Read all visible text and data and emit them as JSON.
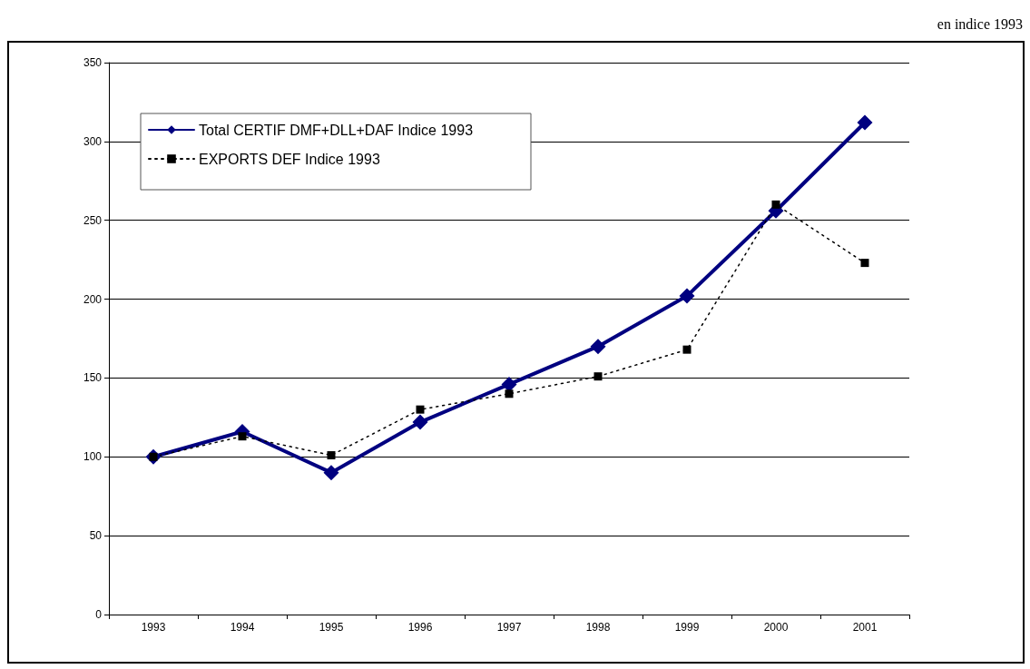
{
  "chart_data": {
    "type": "line",
    "subtitle": "en indice 1993",
    "categories": [
      "1993",
      "1994",
      "1995",
      "1996",
      "1997",
      "1998",
      "1999",
      "2000",
      "2001"
    ],
    "series": [
      {
        "name": "Total CERTIF DMF+DLL+DAF Indice 1993",
        "color": "#000080",
        "marker": "diamond",
        "line_style": "solid",
        "values": [
          100,
          116,
          90,
          122,
          146,
          170,
          202,
          256,
          312
        ]
      },
      {
        "name": "EXPORTS DEF Indice 1993",
        "color": "#000000",
        "marker": "square",
        "line_style": "dotted",
        "values": [
          100,
          113,
          101,
          130,
          140,
          151,
          168,
          260,
          223
        ]
      }
    ],
    "ylim": [
      0,
      350
    ],
    "yticks": [
      0,
      50,
      100,
      150,
      200,
      250,
      300,
      350
    ],
    "grid": "y",
    "legend": "top left"
  }
}
